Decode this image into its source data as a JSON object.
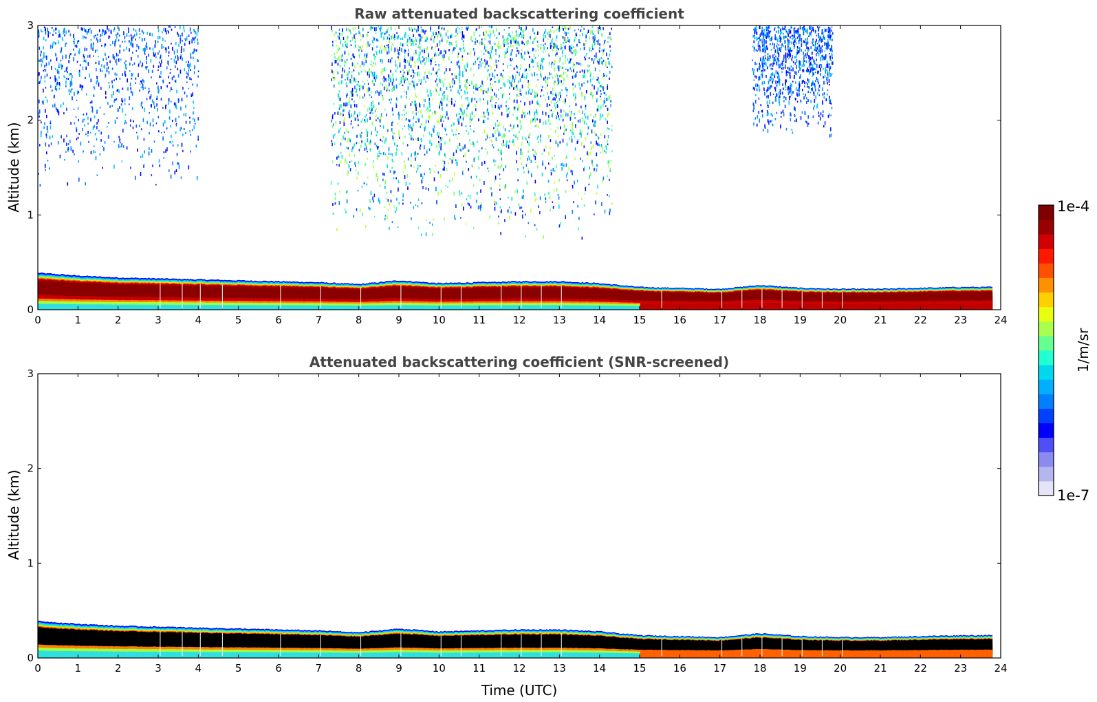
{
  "chart_data": [
    {
      "type": "heatmap",
      "title": "Raw attenuated backscattering coefficient",
      "xlabel": "",
      "ylabel": "Altitude (km)",
      "xlim": [
        0,
        24
      ],
      "ylim": [
        0,
        3
      ],
      "xticks": [
        "0",
        "1",
        "2",
        "3",
        "4",
        "5",
        "6",
        "7",
        "8",
        "9",
        "10",
        "11",
        "12",
        "13",
        "14",
        "15",
        "16",
        "17",
        "18",
        "19",
        "20",
        "21",
        "22",
        "23",
        "24"
      ],
      "yticks": [
        "0",
        "1",
        "2",
        "3"
      ],
      "layer_top_km": {
        "x": [
          0,
          1,
          2,
          3,
          4,
          5,
          6,
          7,
          8,
          9,
          10,
          11,
          12,
          13,
          14,
          15,
          16,
          17,
          18,
          19,
          20,
          21,
          22,
          23,
          23.8
        ],
        "y": [
          0.39,
          0.36,
          0.34,
          0.33,
          0.32,
          0.31,
          0.3,
          0.29,
          0.27,
          0.31,
          0.28,
          0.29,
          0.3,
          0.3,
          0.28,
          0.24,
          0.23,
          0.22,
          0.26,
          0.23,
          0.22,
          0.22,
          0.23,
          0.24,
          0.24
        ]
      },
      "noise_regions": [
        {
          "x": [
            0,
            4
          ],
          "y": [
            1.25,
            3
          ],
          "level": "low"
        },
        {
          "x": [
            7.3,
            14.3
          ],
          "y": [
            0.75,
            3
          ],
          "level": "high"
        },
        {
          "x": [
            17.8,
            19.8
          ],
          "y": [
            1.8,
            3
          ],
          "level": "low"
        }
      ],
      "data_end_time": 23.8
    },
    {
      "type": "heatmap",
      "title": "Attenuated backscattering coefficient (SNR-screened)",
      "xlabel": "Time (UTC)",
      "ylabel": "Altitude (km)",
      "xlim": [
        0,
        24
      ],
      "ylim": [
        0,
        3
      ],
      "xticks": [
        "0",
        "1",
        "2",
        "3",
        "4",
        "5",
        "6",
        "7",
        "8",
        "9",
        "10",
        "11",
        "12",
        "13",
        "14",
        "15",
        "16",
        "17",
        "18",
        "19",
        "20",
        "21",
        "22",
        "23",
        "24"
      ],
      "yticks": [
        "0",
        "1",
        "2",
        "3"
      ],
      "layer_top_km": {
        "x": [
          0,
          1,
          2,
          3,
          4,
          5,
          6,
          7,
          8,
          9,
          10,
          11,
          12,
          13,
          14,
          15,
          16,
          17,
          18,
          19,
          20,
          21,
          22,
          23,
          23.8
        ],
        "y": [
          0.39,
          0.36,
          0.34,
          0.33,
          0.32,
          0.31,
          0.3,
          0.29,
          0.27,
          0.31,
          0.28,
          0.29,
          0.3,
          0.3,
          0.28,
          0.24,
          0.23,
          0.22,
          0.26,
          0.23,
          0.22,
          0.22,
          0.23,
          0.24,
          0.24
        ]
      },
      "saturated_color": "#000000",
      "data_end_time": 23.8
    }
  ],
  "colorbar": {
    "label": "1/m/sr",
    "max_label": "1e-4",
    "min_label": "1e-7",
    "scale": "log",
    "range": [
      1e-07,
      0.0001
    ],
    "colormap": "jet",
    "colors": [
      "#e4e4f6",
      "#b6b6ef",
      "#8a8af0",
      "#4f4ff7",
      "#0000ff",
      "#0040ff",
      "#0080ff",
      "#00b0ff",
      "#00d8ee",
      "#22ffd0",
      "#66ff90",
      "#a8ff50",
      "#e8ff10",
      "#ffd000",
      "#ff9000",
      "#ff5000",
      "#ff1800",
      "#d00000",
      "#9a0000",
      "#7f0000"
    ]
  }
}
